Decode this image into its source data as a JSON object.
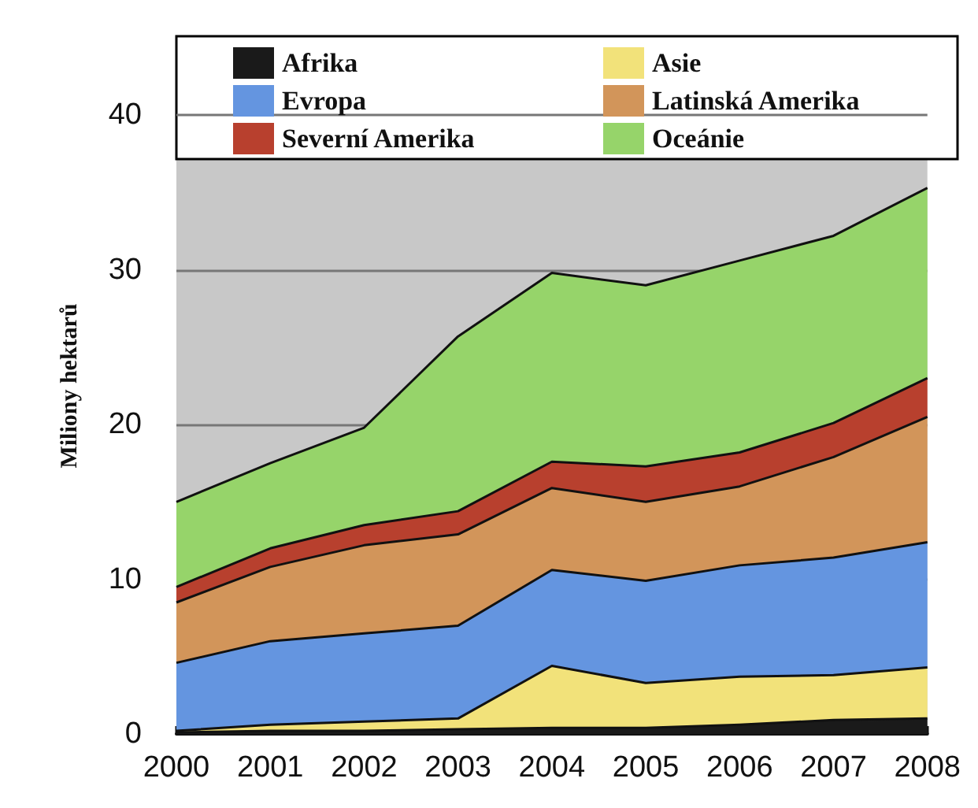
{
  "chart_data": {
    "type": "area",
    "stacked": true,
    "ylabel": "Miliony hektarů",
    "categories": [
      "2000",
      "2001",
      "2002",
      "2003",
      "2004",
      "2005",
      "2006",
      "2007",
      "2008"
    ],
    "series": [
      {
        "name": "Afrika",
        "color": "#1a1a1a",
        "values": [
          0.1,
          0.2,
          0.2,
          0.3,
          0.4,
          0.4,
          0.6,
          0.9,
          1.0
        ]
      },
      {
        "name": "Asie",
        "color": "#f2e27a",
        "values": [
          0.1,
          0.4,
          0.6,
          0.7,
          4.0,
          2.9,
          3.1,
          2.9,
          3.3
        ]
      },
      {
        "name": "Evropa",
        "color": "#6495e0",
        "values": [
          4.4,
          5.4,
          5.7,
          6.0,
          6.2,
          6.6,
          7.2,
          7.6,
          8.1
        ]
      },
      {
        "name": "Latinská Amerika",
        "color": "#d2955a",
        "values": [
          3.9,
          4.8,
          5.7,
          5.9,
          5.3,
          5.1,
          5.1,
          6.5,
          8.1
        ]
      },
      {
        "name": "Severní Amerika",
        "color": "#b8402e",
        "values": [
          1.0,
          1.2,
          1.3,
          1.5,
          1.7,
          2.3,
          2.2,
          2.2,
          2.5
        ]
      },
      {
        "name": "Oceánie",
        "color": "#96d46a",
        "values": [
          5.5,
          5.5,
          6.3,
          11.3,
          12.2,
          11.7,
          12.4,
          12.1,
          12.3
        ]
      }
    ],
    "ylim": [
      0,
      45
    ],
    "yticks": [
      0,
      10,
      20,
      30,
      40
    ],
    "grid": "y",
    "legend": "top"
  }
}
